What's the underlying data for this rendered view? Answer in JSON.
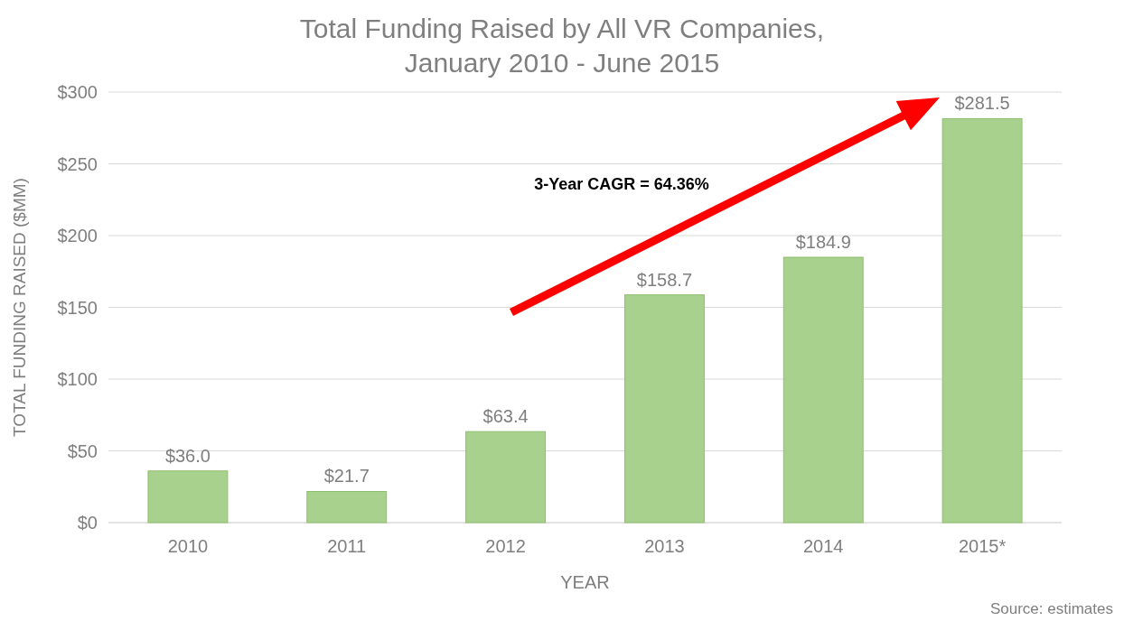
{
  "chart_data": {
    "type": "bar",
    "title": "Total Funding Raised by All VR Companies,\nJanuary 2010 - June 2015",
    "xlabel": "YEAR",
    "ylabel": "TOTAL FUNDING RAISED ($MM)",
    "categories": [
      "2010",
      "2011",
      "2012",
      "2013",
      "2014",
      "2015*"
    ],
    "values": [
      36.0,
      21.7,
      63.4,
      158.7,
      184.9,
      281.5
    ],
    "value_labels": [
      "$36.0",
      "$21.7",
      "$63.4",
      "$158.7",
      "$184.9",
      "$281.5"
    ],
    "color": "#a9d18e",
    "ylim": [
      0,
      300
    ],
    "yticks": [
      {
        "value": 0,
        "label": "$0"
      },
      {
        "value": 50,
        "label": "$50"
      },
      {
        "value": 100,
        "label": "$100"
      },
      {
        "value": 150,
        "label": "$150"
      },
      {
        "value": 200,
        "label": "$200"
      },
      {
        "value": 250,
        "label": "$250"
      },
      {
        "value": 300,
        "label": "$300"
      }
    ],
    "grid": "y",
    "annotations": [
      "3-Year CAGR = 64.36%",
      "Source: estimates"
    ]
  }
}
